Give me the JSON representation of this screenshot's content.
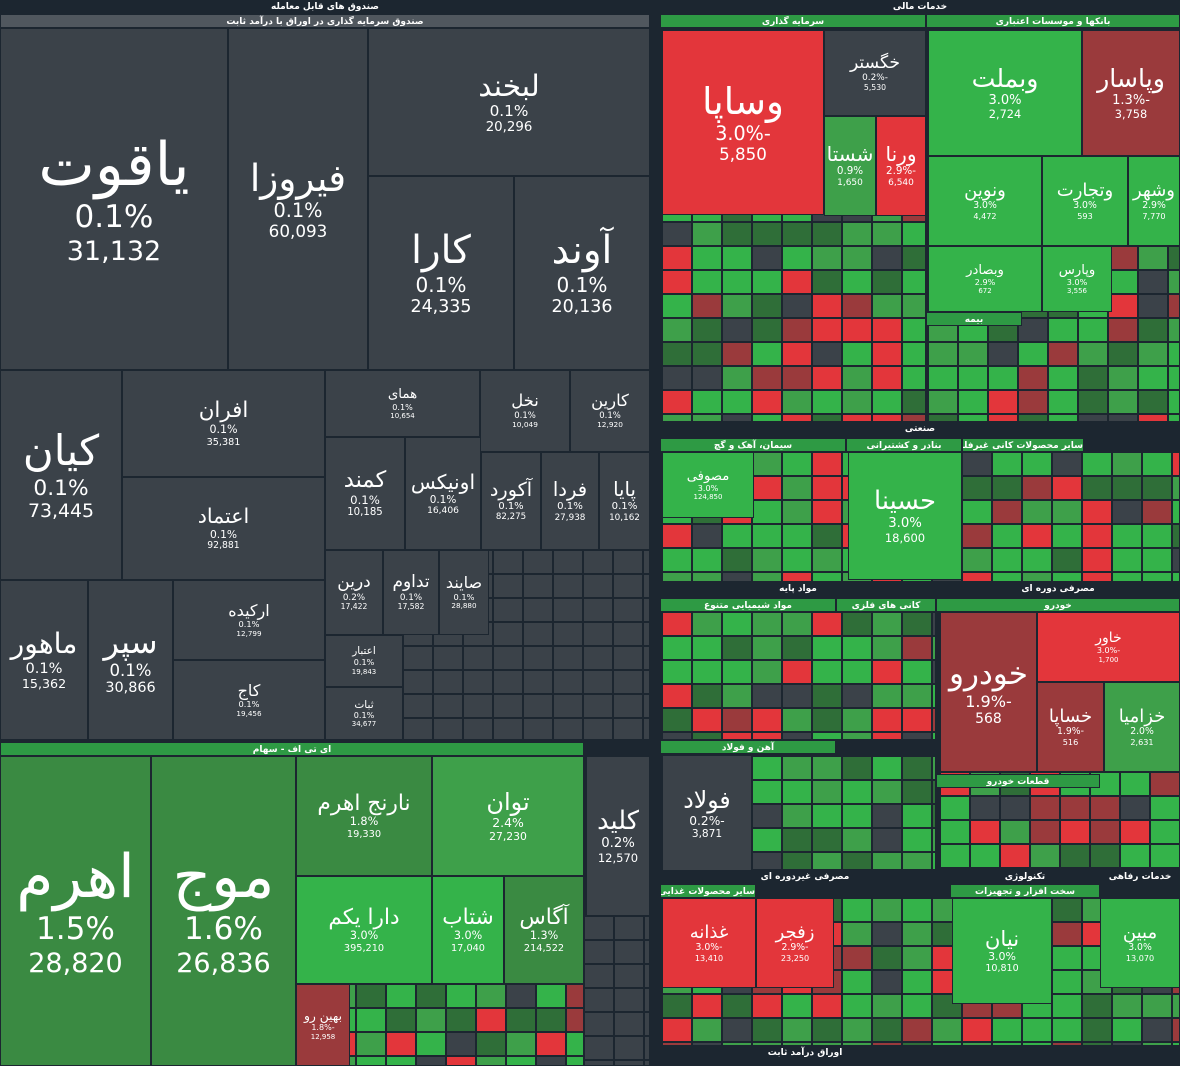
{
  "section_titles": [
    "صندوق های قابل معامله",
    "صندوق سرمایه گذاری در اوراق با درآمد ثابت",
    "ای تی اف - سهام",
    "خدمات مالی",
    "سرمایه گذاری",
    "بانکها و موسسات اعتباری",
    "صنعتی",
    "سیمان، آهک و گچ",
    "بنادر و کشتیرانی",
    "سایر محصولات کانی غیرفلزی",
    "مواد پایه",
    "مواد شیمیایی متنوع",
    "کانی های فلزی",
    "آهن و فولاد",
    "مصرفی دوره ای",
    "خودرو",
    "قطعات خودرو",
    "مصرفی غیردوره ای",
    "سایر محصولات غذایی",
    "تکنولوژی",
    "سخت افزار و تجهیزات",
    "خدمات رفاهی",
    "اوراق درآمد ثابت",
    "بیمه"
  ],
  "tiles": [
    {
      "name": "یاقوت",
      "change": "0.1%",
      "volume": "31,132"
    },
    {
      "name": "فیروزا",
      "change": "0.1%",
      "volume": "60,093"
    },
    {
      "name": "لبخند",
      "change": "0.1%",
      "volume": "20,296"
    },
    {
      "name": "کارا",
      "change": "0.1%",
      "volume": "24,335"
    },
    {
      "name": "آوند",
      "change": "0.1%",
      "volume": "20,136"
    },
    {
      "name": "کیان",
      "change": "0.1%",
      "volume": "73,445"
    },
    {
      "name": "افران",
      "change": "0.1%",
      "volume": "35,381"
    },
    {
      "name": "اعتماد",
      "change": "0.1%",
      "volume": "92,881"
    },
    {
      "name": "همای",
      "change": "0.1%",
      "volume": "10,654"
    },
    {
      "name": "نخل",
      "change": "0.1%",
      "volume": "10,049"
    },
    {
      "name": "کارین",
      "change": "0.1%",
      "volume": "12,920"
    },
    {
      "name": "کمند",
      "change": "0.1%",
      "volume": "10,185"
    },
    {
      "name": "اونیکس",
      "change": "0.1%",
      "volume": "16,406"
    },
    {
      "name": "آکورد",
      "change": "0.1%",
      "volume": "82,275"
    },
    {
      "name": "فردا",
      "change": "0.1%",
      "volume": "27,938"
    },
    {
      "name": "پایا",
      "change": "0.1%",
      "volume": "10,162"
    },
    {
      "name": "ماهور",
      "change": "0.1%",
      "volume": "15,362"
    },
    {
      "name": "سپر",
      "change": "0.1%",
      "volume": "30,866"
    },
    {
      "name": "ارکیده",
      "change": "0.1%",
      "volume": "12,799"
    },
    {
      "name": "کاج",
      "change": "0.1%",
      "volume": "19,456"
    },
    {
      "name": "درین",
      "change": "0.2%",
      "volume": "17,422"
    },
    {
      "name": "تداوم",
      "change": "0.1%",
      "volume": "17,582"
    },
    {
      "name": "صایند",
      "change": "0.1%",
      "volume": "28,880"
    },
    {
      "name": "اعتبار",
      "change": "0.1%",
      "volume": "19,843"
    },
    {
      "name": "ثبات",
      "change": "0.1%",
      "volume": "34,677"
    },
    {
      "name": "اهرم",
      "change": "1.5%",
      "volume": "28,820"
    },
    {
      "name": "موج",
      "change": "1.6%",
      "volume": "26,836"
    },
    {
      "name": "نارنج اهرم",
      "change": "1.8%",
      "volume": "19,330"
    },
    {
      "name": "توان",
      "change": "2.4%",
      "volume": "27,230"
    },
    {
      "name": "دارا یکم",
      "change": "3.0%",
      "volume": "395,210"
    },
    {
      "name": "شتاب",
      "change": "3.0%",
      "volume": "17,040"
    },
    {
      "name": "آگاس",
      "change": "1.3%",
      "volume": "214,522"
    },
    {
      "name": "بهین رو",
      "change": "-1.8%",
      "volume": "12,958"
    },
    {
      "name": "کلید",
      "change": "0.2%",
      "volume": "12,570"
    },
    {
      "name": "وساپا",
      "change": "-3.0%",
      "volume": "5,850"
    },
    {
      "name": "خگستر",
      "change": "-0.2%",
      "volume": "5,530"
    },
    {
      "name": "وبملت",
      "change": "3.0%",
      "volume": "2,724"
    },
    {
      "name": "وپاسار",
      "change": "-1.3%",
      "volume": "3,758"
    },
    {
      "name": "ونوین",
      "change": "3.0%",
      "volume": "4,472"
    },
    {
      "name": "وتجارت",
      "change": "3.0%",
      "volume": "593"
    },
    {
      "name": "وشهر",
      "change": "2.9%",
      "volume": "7,770"
    },
    {
      "name": "وبصادر",
      "change": "2.9%",
      "volume": "672"
    },
    {
      "name": "وپارس",
      "change": "3.0%",
      "volume": "3,556"
    },
    {
      "name": "مصوفی",
      "change": "3.0%",
      "volume": "124,850"
    },
    {
      "name": "حسینا",
      "change": "3.0%",
      "volume": "18,600"
    },
    {
      "name": "خودرو",
      "change": "-1.9%",
      "volume": "568"
    },
    {
      "name": "خاور",
      "change": "-3.0%",
      "volume": "1,700"
    },
    {
      "name": "خساپا",
      "change": "-1.9%",
      "volume": "516"
    },
    {
      "name": "خزامیا",
      "change": "2.0%",
      "volume": "2,631"
    },
    {
      "name": "فولاد",
      "change": "-0.2%",
      "volume": "3,871"
    },
    {
      "name": "غذانه",
      "change": "-3.0%",
      "volume": "13,410"
    },
    {
      "name": "زفجر",
      "change": "-2.9%",
      "volume": "23,250"
    },
    {
      "name": "نیان",
      "change": "3.0%",
      "volume": "10,810"
    },
    {
      "name": "مبین",
      "change": "3.0%",
      "volume": "13,070"
    },
    {
      "name": "شستا",
      "change": "0.9%",
      "volume": "1,650"
    },
    {
      "name": "ورنا",
      "change": "-2.9%",
      "volume": "6,540"
    }
  ]
}
